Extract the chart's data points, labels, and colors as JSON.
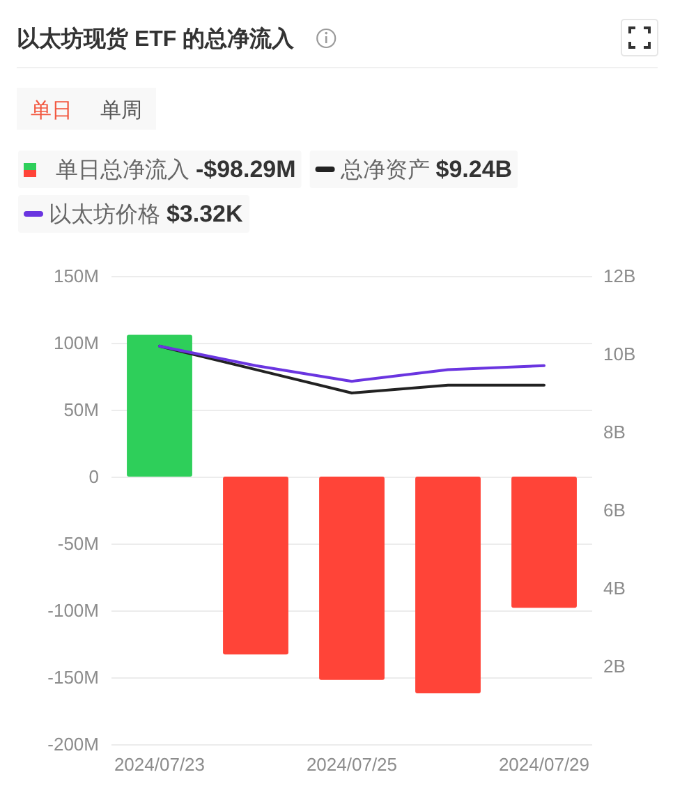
{
  "chart_data": {
    "type": "bar",
    "title": "以太坊现货 ETF 的总净流入",
    "annotations": [
      "单日",
      "单周"
    ],
    "categories": [
      "2024/07/23",
      null,
      "2024/07/25",
      null,
      "2024/07/29"
    ],
    "series": [
      {
        "name": "单日总净流入 **-$98.29M**",
        "colors": [
          "#2ecf5a",
          "#ff4438",
          "#ff4438",
          "#ff4438",
          "#ff4438"
        ],
        "values": [
          106,
          -133,
          -152,
          -162,
          -98
        ]
      },
      {
        "name": "总净资产 **$9.24B**",
        "type": "line",
        "axis": "y2",
        "color": "#222222",
        "values": [
          10.2,
          9.6,
          9.0,
          9.2,
          9.2
        ]
      },
      {
        "name": "以太坊价格 **$3.32K**",
        "type": "line",
        "axis": "y2",
        "color": "#6a35e0",
        "values": [
          10.2,
          9.7,
          9.3,
          9.6,
          9.7
        ]
      }
    ],
    "ylim": [
      -200,
      150
    ],
    "yticks": [
      {
        "value": -200,
        "label": "-200M"
      },
      {
        "value": -150,
        "label": "-150M"
      },
      {
        "value": -100,
        "label": "-100M"
      },
      {
        "value": -50,
        "label": "-50M"
      },
      0,
      {
        "value": 50,
        "label": "50M"
      },
      {
        "value": 100,
        "label": "100M"
      },
      {
        "value": 150,
        "label": "150M"
      }
    ],
    "y2lim": [
      0,
      12
    ],
    "y2ticks": [
      {
        "value": 2,
        "label": "2B"
      },
      {
        "value": 4,
        "label": "4B"
      },
      {
        "value": 6,
        "label": "6B"
      },
      {
        "value": 8,
        "label": "8B"
      },
      {
        "value": 10,
        "label": "10B"
      },
      {
        "value": 12,
        "label": "12B"
      }
    ],
    "grid": "y",
    "legend": "top"
  }
}
